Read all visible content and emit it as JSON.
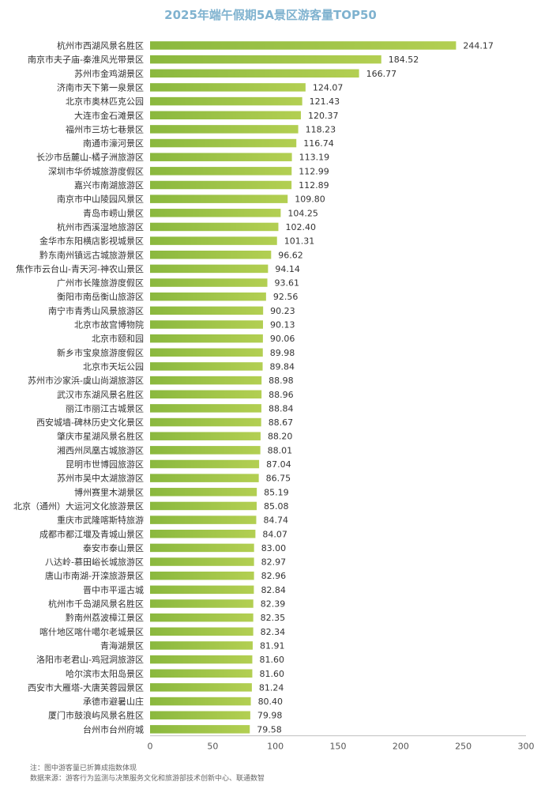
{
  "chart_data": {
    "type": "bar",
    "orientation": "horizontal",
    "title": "2025年端午假期5A景区游客量TOP50",
    "categories": [
      "杭州市西湖风景名胜区",
      "南京市夫子庙-秦淮风光带景区",
      "苏州市金鸡湖景区",
      "济南市天下第一泉景区",
      "北京市奥林匹克公园",
      "大连市金石滩景区",
      "福州市三坊七巷景区",
      "南通市濠河景区",
      "长沙市岳麓山-橘子洲旅游区",
      "深圳市华侨城旅游度假区",
      "嘉兴市南湖旅游区",
      "南京市中山陵园风景区",
      "青岛市崂山景区",
      "杭州市西溪湿地旅游区",
      "金华市东阳横店影视城景区",
      "黔东南州镇远古城旅游景区",
      "焦作市云台山-青天河-神农山景区",
      "广州市长隆旅游度假区",
      "衡阳市南岳衡山旅游区",
      "南宁市青秀山风景旅游区",
      "北京市故宫博物院",
      "北京市颐和园",
      "新乡市宝泉旅游度假区",
      "北京市天坛公园",
      "苏州市沙家浜-虞山尚湖旅游区",
      "武汉市东湖风景名胜区",
      "丽江市丽江古城景区",
      "西安城墙-碑林历史文化景区",
      "肇庆市星湖风景名胜区",
      "湘西州凤凰古城旅游区",
      "昆明市世博园旅游区",
      "苏州市吴中太湖旅游区",
      "博州赛里木湖景区",
      "北京（通州）大运河文化旅游景区",
      "重庆市武隆喀斯特旅游",
      "成都市都江堰及青城山景区",
      "泰安市泰山景区",
      "八达岭-慕田峪长城旅游区",
      "唐山市南湖-开滦旅游景区",
      "晋中市平遥古城",
      "杭州市千岛湖风景名胜区",
      "黔南州荔波樟江景区",
      "喀什地区喀什噶尔老城景区",
      "青海湖景区",
      "洛阳市老君山-鸡冠洞旅游区",
      "哈尔滨市太阳岛景区",
      "西安市大雁塔-大唐芙蓉园景区",
      "承德市避暑山庄",
      "厦门市鼓浪屿风景名胜区",
      "台州市台州府城"
    ],
    "values": [
      244.17,
      184.52,
      166.77,
      124.07,
      121.43,
      120.37,
      118.23,
      116.74,
      113.19,
      112.99,
      112.89,
      109.8,
      104.25,
      102.4,
      101.31,
      96.62,
      94.14,
      93.61,
      92.56,
      90.23,
      90.13,
      90.06,
      89.98,
      89.84,
      88.98,
      88.96,
      88.84,
      88.67,
      88.2,
      88.01,
      87.04,
      86.75,
      85.19,
      85.08,
      84.74,
      84.07,
      83.0,
      82.97,
      82.96,
      82.84,
      82.39,
      82.35,
      82.34,
      81.91,
      81.6,
      81.6,
      81.24,
      80.4,
      79.98,
      79.58
    ],
    "value_labels": [
      "244.17",
      "184.52",
      "166.77",
      "124.07",
      "121.43",
      "120.37",
      "118.23",
      "116.74",
      "113.19",
      "112.99",
      "112.89",
      "109.80",
      "104.25",
      "102.40",
      "101.31",
      "96.62",
      "94.14",
      "93.61",
      "92.56",
      "90.23",
      "90.13",
      "90.06",
      "89.98",
      "89.84",
      "88.98",
      "88.96",
      "88.84",
      "88.67",
      "88.20",
      "88.01",
      "87.04",
      "86.75",
      "85.19",
      "85.08",
      "84.74",
      "84.07",
      "83.00",
      "82.97",
      "82.96",
      "82.84",
      "82.39",
      "82.35",
      "82.34",
      "81.91",
      "81.60",
      "81.60",
      "81.24",
      "80.40",
      "79.98",
      "79.58"
    ],
    "xlim": [
      0,
      300
    ],
    "xticks": [
      "0",
      "50",
      "100",
      "150",
      "200",
      "250",
      "300"
    ],
    "xlabel": "",
    "ylabel": "",
    "grid": false,
    "legend": "none",
    "bar_color_left": "#8ab83e",
    "bar_color_right": "#b3cf52",
    "title_color": "#7fb2cf"
  },
  "notes": {
    "note": "注：图中游客量已折算成指数体现",
    "source": "数据来源：游客行为监测与决策服务文化和旅游部技术创新中心、联通数智"
  }
}
